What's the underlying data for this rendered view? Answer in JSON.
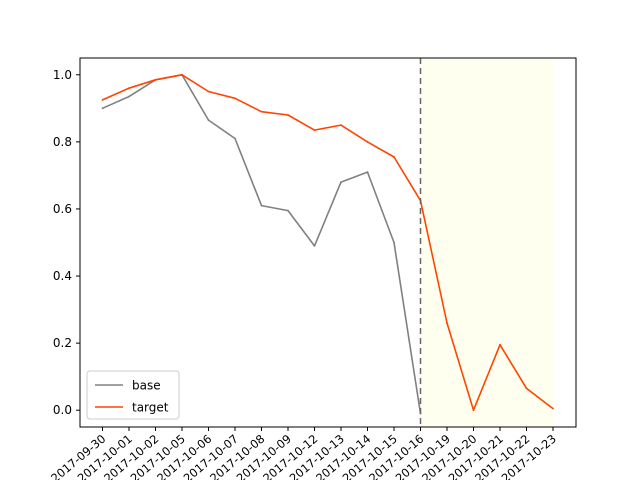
{
  "chart_data": {
    "type": "line",
    "categories": [
      "2017-09-30",
      "2017-10-01",
      "2017-10-02",
      "2017-10-05",
      "2017-10-06",
      "2017-10-07",
      "2017-10-08",
      "2017-10-09",
      "2017-10-12",
      "2017-10-13",
      "2017-10-14",
      "2017-10-15",
      "2017-10-16",
      "2017-10-19",
      "2017-10-20",
      "2017-10-21",
      "2017-10-22",
      "2017-10-23"
    ],
    "series": [
      {
        "name": "base",
        "color": "#808080",
        "values": [
          0.9,
          0.935,
          0.985,
          1.0,
          0.865,
          0.81,
          0.61,
          0.595,
          0.49,
          0.68,
          0.71,
          0.5,
          -0.01,
          null,
          null,
          null,
          null,
          null
        ]
      },
      {
        "name": "target",
        "color": "#ff4500",
        "values": [
          0.925,
          0.96,
          0.985,
          1.0,
          0.95,
          0.93,
          0.89,
          0.88,
          0.835,
          0.85,
          0.8,
          0.755,
          0.625,
          0.26,
          0.0,
          0.195,
          0.065,
          0.005
        ]
      }
    ],
    "ylim": [
      -0.05,
      1.05
    ],
    "yticks": [
      "0.0",
      "0.2",
      "0.4",
      "0.6",
      "0.8",
      "1.0"
    ],
    "title": "",
    "xlabel": "",
    "ylabel": "",
    "marker_line": {
      "category": "2017-10-16",
      "style": "dashed",
      "color": "#666666"
    },
    "shaded_region": {
      "from": "2017-10-16",
      "to": "2017-10-23",
      "color": "#fffff0"
    },
    "legend": {
      "placement": "lower-left"
    },
    "grid": false
  }
}
